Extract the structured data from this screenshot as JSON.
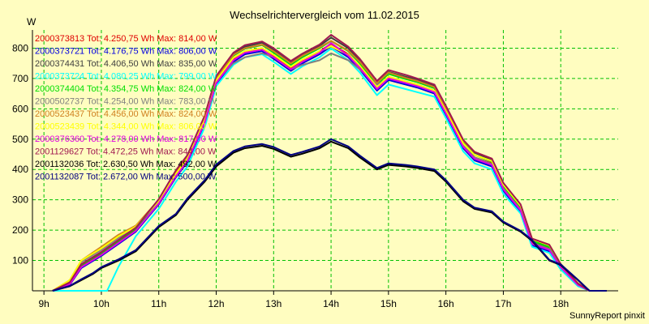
{
  "chart_data": {
    "type": "line",
    "title": "Wechselrichtervergleich vom 11.02.2015",
    "ylabel": "W",
    "footer": "SunnyReport pinxit",
    "ylim": [
      0,
      860
    ],
    "xlim": [
      8.8,
      19.0
    ],
    "grid": true,
    "legend_placement": "top-left",
    "ytick_values": [
      100,
      200,
      300,
      400,
      500,
      600,
      700,
      800
    ],
    "ytick_labels": [
      "100",
      "200",
      "300",
      "400",
      "500",
      "600",
      "700",
      "800"
    ],
    "xtick_values": [
      9,
      10,
      11,
      12,
      13,
      14,
      15,
      16,
      17,
      18
    ],
    "xtick_labels": [
      "9h",
      "10h",
      "11h",
      "12h",
      "13h",
      "14h",
      "15h",
      "16h",
      "17h",
      "18h"
    ],
    "series": [
      {
        "name": "2000373813",
        "color": "#e00000",
        "tot": "Tot: 4.250,75 Wh",
        "max": "Max: 814,00 W",
        "x": [
          9.15,
          9.45,
          9.65,
          10.0,
          10.3,
          10.6,
          11.0,
          11.3,
          11.5,
          11.8,
          12.0,
          12.3,
          12.5,
          12.8,
          13.0,
          13.3,
          13.5,
          13.8,
          14.0,
          14.3,
          14.5,
          14.8,
          15.0,
          15.3,
          15.5,
          15.8,
          16.0,
          16.3,
          16.5,
          16.8,
          17.0,
          17.3,
          17.5,
          17.8,
          18.0,
          18.3,
          18.5,
          18.8
        ],
        "y": [
          0,
          25,
          80,
          120,
          160,
          200,
          290,
          380,
          430,
          560,
          690,
          765,
          790,
          800,
          775,
          735,
          760,
          790,
          814,
          780,
          740,
          670,
          705,
          690,
          680,
          660,
          590,
          480,
          440,
          420,
          340,
          270,
          160,
          140,
          80,
          20,
          0,
          0
        ]
      },
      {
        "name": "2000373721",
        "color": "#0000e0",
        "tot": "Tot: 4.176,75 Wh",
        "max": "Max: 806,00 W",
        "x": [
          9.15,
          9.45,
          9.65,
          10.0,
          10.3,
          10.6,
          11.0,
          11.3,
          11.5,
          11.8,
          12.0,
          12.3,
          12.5,
          12.8,
          13.0,
          13.3,
          13.5,
          13.8,
          14.0,
          14.3,
          14.5,
          14.8,
          15.0,
          15.3,
          15.5,
          15.8,
          16.0,
          16.3,
          16.5,
          16.8,
          17.0,
          17.3,
          17.5,
          17.8,
          18.0,
          18.3,
          18.5,
          18.8
        ],
        "y": [
          0,
          20,
          75,
          115,
          155,
          195,
          285,
          375,
          425,
          550,
          680,
          755,
          780,
          790,
          765,
          725,
          750,
          780,
          806,
          770,
          730,
          660,
          695,
          680,
          670,
          650,
          580,
          470,
          430,
          410,
          330,
          260,
          150,
          130,
          75,
          18,
          0,
          0
        ]
      },
      {
        "name": "2000374431",
        "color": "#404040",
        "tot": "Tot: 4.406,50 Wh",
        "max": "Max: 835,00 W",
        "x": [
          9.15,
          9.45,
          9.65,
          10.0,
          10.3,
          10.6,
          11.0,
          11.3,
          11.5,
          11.8,
          12.0,
          12.3,
          12.5,
          12.8,
          13.0,
          13.3,
          13.5,
          13.8,
          14.0,
          14.3,
          14.5,
          14.8,
          15.0,
          15.3,
          15.5,
          15.8,
          16.0,
          16.3,
          16.5,
          16.8,
          17.0,
          17.3,
          17.5,
          17.8,
          18.0,
          18.3,
          18.5,
          18.8
        ],
        "y": [
          0,
          25,
          85,
          125,
          165,
          205,
          300,
          395,
          445,
          575,
          705,
          780,
          805,
          818,
          795,
          752,
          778,
          808,
          835,
          800,
          760,
          688,
          722,
          706,
          696,
          676,
          605,
          495,
          455,
          432,
          352,
          280,
          168,
          148,
          85,
          22,
          0,
          0
        ]
      },
      {
        "name": "2000373724",
        "color": "#00ffff",
        "tot": "Tot: 4.080,25 Wh",
        "max": "Max: 799,00 W",
        "x": [
          9.15,
          9.45,
          9.65,
          10.0,
          10.1,
          10.3,
          10.6,
          11.0,
          11.3,
          11.5,
          11.8,
          12.0,
          12.3,
          12.5,
          12.8,
          13.0,
          13.3,
          13.5,
          13.8,
          14.0,
          14.3,
          14.5,
          14.8,
          15.0,
          15.3,
          15.5,
          15.8,
          16.0,
          16.3,
          16.5,
          16.8,
          17.0,
          17.3,
          17.5,
          17.8,
          18.0,
          18.3,
          18.5,
          18.8
        ],
        "y": [
          0,
          0,
          0,
          0,
          0,
          80,
          180,
          270,
          360,
          410,
          540,
          675,
          745,
          770,
          780,
          755,
          715,
          740,
          770,
          799,
          760,
          720,
          645,
          680,
          665,
          655,
          640,
          570,
          460,
          420,
          400,
          320,
          255,
          145,
          125,
          70,
          15,
          0,
          0
        ]
      },
      {
        "name": "2000374404",
        "color": "#00e000",
        "tot": "Tot: 4.354,75 Wh",
        "max": "Max: 824,00 W",
        "x": [
          9.15,
          9.45,
          9.65,
          10.0,
          10.3,
          10.6,
          11.0,
          11.3,
          11.5,
          11.8,
          12.0,
          12.3,
          12.5,
          12.8,
          13.0,
          13.3,
          13.5,
          13.8,
          14.0,
          14.3,
          14.5,
          14.8,
          15.0,
          15.3,
          15.5,
          15.8,
          16.0,
          16.3,
          16.5,
          16.8,
          17.0,
          17.3,
          17.5,
          17.8,
          18.0,
          18.3,
          18.5,
          18.8
        ],
        "y": [
          0,
          25,
          85,
          125,
          165,
          205,
          295,
          388,
          438,
          568,
          700,
          775,
          798,
          810,
          785,
          745,
          770,
          800,
          824,
          790,
          750,
          680,
          715,
          698,
          688,
          668,
          598,
          488,
          448,
          426,
          346,
          276,
          164,
          144,
          82,
          20,
          0,
          0
        ]
      },
      {
        "name": "2000502737",
        "color": "#808080",
        "tot": "Tot: 4.254,00 Wh",
        "max": "Max: 783,00 W",
        "x": [
          9.15,
          9.45,
          9.65,
          10.0,
          10.3,
          10.6,
          11.0,
          11.3,
          11.5,
          11.8,
          12.0,
          12.3,
          12.5,
          12.8,
          13.0,
          13.3,
          13.5,
          13.8,
          14.0,
          14.3,
          14.5,
          14.8,
          15.0,
          15.3,
          15.5,
          15.8,
          16.0,
          16.3,
          16.5,
          16.8,
          17.0,
          17.3,
          17.5,
          17.8,
          18.0,
          18.3,
          18.5,
          18.8
        ],
        "y": [
          0,
          30,
          95,
          135,
          175,
          210,
          295,
          385,
          435,
          560,
          690,
          750,
          770,
          783,
          770,
          730,
          745,
          760,
          783,
          760,
          730,
          680,
          700,
          690,
          680,
          660,
          590,
          480,
          440,
          418,
          338,
          268,
          158,
          138,
          78,
          20,
          0,
          0
        ]
      },
      {
        "name": "2000523437",
        "color": "#d08020",
        "tot": "Tot: 4.456,00 Wh",
        "max": "Max: 824,00 W",
        "x": [
          9.15,
          9.45,
          9.65,
          10.0,
          10.3,
          10.6,
          11.0,
          11.3,
          11.5,
          11.8,
          12.0,
          12.3,
          12.5,
          12.8,
          13.0,
          13.3,
          13.5,
          13.8,
          14.0,
          14.3,
          14.5,
          14.8,
          15.0,
          15.3,
          15.5,
          15.8,
          16.0,
          16.3,
          16.5,
          16.8,
          17.0,
          17.3,
          17.5,
          17.8,
          18.0,
          18.3,
          18.5,
          18.8
        ],
        "y": [
          0,
          35,
          100,
          145,
          185,
          215,
          300,
          392,
          442,
          572,
          702,
          778,
          800,
          812,
          790,
          750,
          775,
          803,
          824,
          792,
          755,
          685,
          720,
          702,
          692,
          672,
          602,
          495,
          458,
          436,
          356,
          284,
          172,
          152,
          88,
          24,
          0,
          0
        ]
      },
      {
        "name": "2000523439",
        "color": "#ffff00",
        "tot": "Tot: 4.344,00 Wh",
        "max": "Max: 806,00 W",
        "x": [
          9.15,
          9.45,
          9.65,
          10.0,
          10.3,
          10.6,
          11.0,
          11.3,
          11.5,
          11.8,
          12.0,
          12.3,
          12.5,
          12.8,
          13.0,
          13.3,
          13.5,
          13.8,
          14.0,
          14.3,
          14.5,
          14.8,
          15.0,
          15.3,
          15.5,
          15.8,
          16.0,
          16.3,
          16.5,
          16.8,
          17.0,
          17.3,
          17.5,
          17.8,
          18.0,
          18.3,
          18.5,
          18.8
        ],
        "y": [
          0,
          35,
          100,
          140,
          180,
          212,
          296,
          386,
          436,
          564,
          694,
          768,
          790,
          800,
          778,
          738,
          762,
          790,
          806,
          778,
          742,
          672,
          706,
          690,
          680,
          660,
          592,
          486,
          448,
          428,
          350,
          280,
          170,
          150,
          88,
          24,
          0,
          0
        ]
      },
      {
        "name": "2000376360",
        "color": "#e000e0",
        "tot": "Tot: 4.278,00 Wh",
        "max": "Max: 817,00 W",
        "x": [
          9.15,
          9.45,
          9.65,
          10.0,
          10.3,
          10.6,
          11.0,
          11.3,
          11.5,
          11.8,
          12.0,
          12.3,
          12.5,
          12.8,
          13.0,
          13.3,
          13.5,
          13.8,
          14.0,
          14.3,
          14.5,
          14.8,
          15.0,
          15.3,
          15.5,
          15.8,
          16.0,
          16.3,
          16.5,
          16.8,
          17.0,
          17.3,
          17.5,
          17.8,
          18.0,
          18.3,
          18.5,
          18.8
        ],
        "y": [
          0,
          22,
          78,
          118,
          158,
          198,
          288,
          378,
          428,
          555,
          685,
          760,
          785,
          795,
          770,
          730,
          755,
          785,
          817,
          775,
          735,
          665,
          700,
          685,
          675,
          655,
          585,
          475,
          435,
          415,
          335,
          265,
          155,
          135,
          78,
          19,
          0,
          0
        ]
      },
      {
        "name": "2001129627",
        "color": "#a01850",
        "tot": "Tot: 4.472,25 Wh",
        "max": "Max: 844,00 W",
        "x": [
          9.15,
          9.45,
          9.65,
          10.0,
          10.3,
          10.6,
          11.0,
          11.3,
          11.5,
          11.8,
          12.0,
          12.3,
          12.5,
          12.8,
          13.0,
          13.3,
          13.5,
          13.8,
          14.0,
          14.3,
          14.5,
          14.8,
          15.0,
          15.3,
          15.5,
          15.8,
          16.0,
          16.3,
          16.5,
          16.8,
          17.0,
          17.3,
          17.5,
          17.8,
          18.0,
          18.3,
          18.5,
          18.8
        ],
        "y": [
          0,
          28,
          88,
          128,
          168,
          208,
          302,
          398,
          448,
          578,
          708,
          785,
          810,
          822,
          800,
          758,
          782,
          812,
          844,
          805,
          765,
          692,
          728,
          712,
          700,
          680,
          610,
          498,
          458,
          436,
          356,
          285,
          172,
          152,
          88,
          24,
          0,
          0
        ]
      },
      {
        "name": "2001132036",
        "color": "#000000",
        "tot": "Tot: 2.630,50 Wh",
        "max": "Max: 492,00 W",
        "x": [
          9.15,
          9.45,
          9.65,
          9.85,
          10.0,
          10.3,
          10.6,
          11.0,
          11.3,
          11.5,
          11.8,
          12.0,
          12.3,
          12.5,
          12.8,
          13.0,
          13.3,
          13.5,
          13.8,
          14.0,
          14.3,
          14.5,
          14.8,
          15.0,
          15.3,
          15.5,
          15.8,
          16.0,
          16.3,
          16.5,
          16.8,
          17.0,
          17.3,
          17.5,
          17.8,
          18.0,
          18.3,
          18.5,
          18.8
        ],
        "y": [
          0,
          15,
          35,
          55,
          75,
          100,
          130,
          210,
          250,
          300,
          360,
          410,
          455,
          470,
          478,
          468,
          442,
          452,
          470,
          492,
          470,
          440,
          400,
          415,
          410,
          405,
          395,
          360,
          295,
          270,
          258,
          225,
          195,
          165,
          100,
          85,
          35,
          0,
          0
        ]
      },
      {
        "name": "2001132087",
        "color": "#000080",
        "tot": "Tot: 2.672,00 Wh",
        "max": "Max: 500,00 W",
        "x": [
          9.15,
          9.45,
          9.65,
          9.85,
          10.0,
          10.3,
          10.6,
          11.0,
          11.3,
          11.5,
          11.8,
          12.0,
          12.3,
          12.5,
          12.8,
          13.0,
          13.3,
          13.5,
          13.8,
          14.0,
          14.3,
          14.5,
          14.8,
          15.0,
          15.3,
          15.5,
          15.8,
          16.0,
          16.3,
          16.5,
          16.8,
          17.0,
          17.3,
          17.5,
          17.8,
          18.0,
          18.3,
          18.5,
          18.8
        ],
        "y": [
          0,
          16,
          38,
          58,
          78,
          104,
          134,
          214,
          254,
          305,
          365,
          416,
          461,
          476,
          484,
          474,
          448,
          458,
          476,
          500,
          476,
          446,
          405,
          420,
          415,
          410,
          400,
          365,
          300,
          274,
          262,
          228,
          198,
          168,
          102,
          87,
          36,
          0,
          0
        ]
      }
    ]
  }
}
